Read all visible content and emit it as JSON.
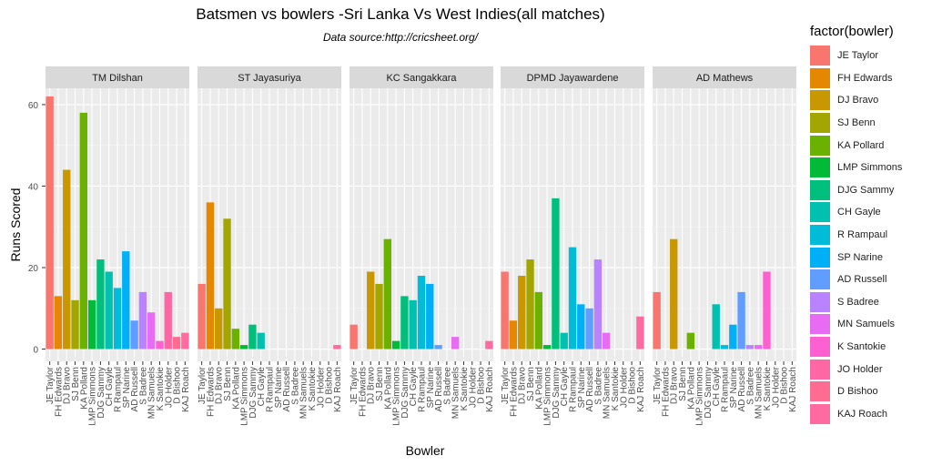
{
  "chart_data": {
    "type": "bar",
    "title": "Batsmen vs bowlers -Sri Lanka Vs West Indies(all matches)",
    "subtitle": "Data source:http://cricsheet.org/",
    "xlabel": "Bowler",
    "ylabel": "Runs Scored",
    "ylim": [
      -3,
      64
    ],
    "y_ticks": [
      0,
      20,
      40,
      60
    ],
    "legend_title": "factor(bowler)",
    "legend_position": "right",
    "categories": [
      "JE Taylor",
      "FH Edwards",
      "DJ Bravo",
      "SJ Benn",
      "KA Pollard",
      "LMP Simmons",
      "DJG Sammy",
      "CH Gayle",
      "R Rampaul",
      "SP Narine",
      "AD Russell",
      "S Badree",
      "MN Samuels",
      "K Santokie",
      "JO Holder",
      "D Bishoo",
      "KAJ Roach"
    ],
    "colors": [
      "#F8766D",
      "#E58700",
      "#C99800",
      "#A3A500",
      "#6BB100",
      "#00BA38",
      "#00BF7D",
      "#00C0AF",
      "#00BCD8",
      "#00B0F6",
      "#619CFF",
      "#B983FF",
      "#E76BF3",
      "#FD61D1",
      "#FF67A4",
      "#FF6C92",
      "#FF6B9E"
    ],
    "panels": [
      {
        "name": "TM Dilshan",
        "values": [
          62,
          13,
          44,
          12,
          58,
          12,
          22,
          19,
          15,
          24,
          7,
          14,
          9,
          2,
          14,
          3,
          4
        ]
      },
      {
        "name": "ST Jayasuriya",
        "values": [
          16,
          36,
          10,
          32,
          5,
          1,
          6,
          4,
          0,
          0,
          0,
          0,
          0,
          0,
          0,
          0,
          1
        ]
      },
      {
        "name": "KC Sangakkara",
        "values": [
          6,
          0,
          19,
          16,
          27,
          2,
          13,
          12,
          18,
          16,
          1,
          0,
          3,
          0,
          0,
          0,
          2
        ]
      },
      {
        "name": "DPMD Jayawardene",
        "values": [
          19,
          7,
          18,
          22,
          14,
          1,
          37,
          4,
          25,
          11,
          10,
          22,
          4,
          0,
          0,
          0,
          8
        ]
      },
      {
        "name": "AD Mathews",
        "values": [
          14,
          0,
          27,
          0,
          4,
          0,
          0,
          11,
          1,
          6,
          14,
          1,
          1,
          19,
          0,
          0,
          0
        ]
      }
    ]
  }
}
